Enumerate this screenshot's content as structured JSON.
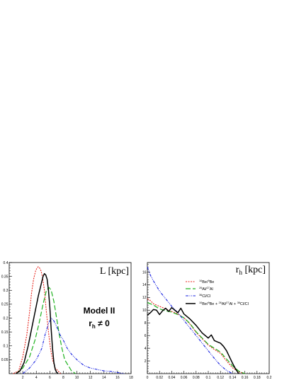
{
  "chart_data": [
    {
      "type": "line",
      "panel": "L",
      "title": "L [kpc]",
      "annotation": {
        "line1": "Model II",
        "line2_main": "r",
        "line2_sub": "h",
        "line2_rest": " ≠ 0"
      },
      "xlim": [
        0,
        18
      ],
      "ylim": [
        0,
        0.4
      ],
      "xticks": [
        2,
        4,
        6,
        8,
        10,
        12,
        14,
        16,
        18
      ],
      "yticks": [
        0.05,
        0.1,
        0.15,
        0.2,
        0.25,
        0.3,
        0.35,
        0.4
      ],
      "ytick_labels": [
        "0.05",
        "0.1",
        "0.15",
        "0.2",
        "0.25",
        "0.3",
        "0.35",
        "0.4"
      ],
      "series": [
        {
          "color": "#e8231b",
          "dash": "2,1.5",
          "width": 1.1,
          "x": [
            0.6,
            1.4,
            2.0,
            2.6,
            3.0,
            3.3,
            3.6,
            3.9,
            4.1,
            4.3,
            4.5,
            4.7,
            4.9,
            5.2,
            5.5,
            5.8,
            6.1,
            6.4,
            6.8,
            7.2,
            7.6
          ],
          "y": [
            0.0,
            0.01,
            0.06,
            0.14,
            0.22,
            0.29,
            0.34,
            0.37,
            0.38,
            0.385,
            0.38,
            0.37,
            0.35,
            0.3,
            0.22,
            0.15,
            0.09,
            0.05,
            0.02,
            0.01,
            0.0
          ]
        },
        {
          "color": "#1fb21f",
          "dash": "7,3",
          "width": 1.2,
          "x": [
            1.0,
            2.0,
            3.0,
            3.8,
            4.4,
            5.0,
            5.5,
            5.9,
            6.2,
            6.6,
            7.0,
            7.4,
            7.8,
            8.2,
            8.7,
            9.2,
            9.8
          ],
          "y": [
            0.0,
            0.02,
            0.06,
            0.12,
            0.18,
            0.25,
            0.3,
            0.31,
            0.3,
            0.26,
            0.2,
            0.14,
            0.09,
            0.05,
            0.03,
            0.01,
            0.0
          ]
        },
        {
          "color": "#1620e0",
          "dash": "4,1.5,1,1.5,1,1.5",
          "width": 1.1,
          "x": [
            2.0,
            3.0,
            4.0,
            4.8,
            5.3,
            5.8,
            6.2,
            6.6,
            7.0,
            7.5,
            8.0,
            8.6,
            9.2,
            10.0,
            11.0,
            12.0,
            13.0,
            14.0,
            15.0,
            16.0,
            17.0
          ],
          "y": [
            0.0,
            0.02,
            0.05,
            0.09,
            0.14,
            0.18,
            0.2,
            0.19,
            0.17,
            0.14,
            0.12,
            0.09,
            0.07,
            0.05,
            0.03,
            0.02,
            0.015,
            0.01,
            0.008,
            0.004,
            0.0
          ]
        },
        {
          "color": "#000000",
          "dash": "",
          "width": 1.5,
          "x": [
            1.0,
            1.6,
            2.2,
            2.8,
            3.3,
            3.8,
            4.3,
            4.7,
            5.0,
            5.2,
            5.4,
            5.6,
            5.8,
            6.0,
            6.2,
            6.4,
            6.6,
            6.8,
            7.0,
            7.2
          ],
          "y": [
            0.0,
            0.01,
            0.04,
            0.1,
            0.16,
            0.22,
            0.28,
            0.32,
            0.35,
            0.36,
            0.355,
            0.34,
            0.3,
            0.24,
            0.16,
            0.09,
            0.04,
            0.015,
            0.005,
            0.0
          ]
        }
      ]
    },
    {
      "type": "line",
      "panel": "rh",
      "title": {
        "main": "r",
        "sub": "h",
        "rest": " [kpc]"
      },
      "xlim": [
        0,
        0.2
      ],
      "ylim": [
        0,
        17.5
      ],
      "xticks": [
        0,
        0.02,
        0.04,
        0.06,
        0.08,
        0.1,
        0.12,
        0.14,
        0.16,
        0.18,
        0.2
      ],
      "xtick_labels": [
        "0",
        "0.02",
        "0.04",
        "0.06",
        "0.08",
        "0.1",
        "0.12",
        "0.14",
        "0.16",
        "0.18",
        "0.2"
      ],
      "yticks": [
        2,
        4,
        6,
        8,
        10,
        12,
        14,
        16
      ],
      "legend": [
        {
          "pre": "",
          "sup1": "10",
          "mid1": "Be/",
          "sup2": "9",
          "mid2": "Be",
          "sup3": "",
          "mid3": "",
          "sup4": "",
          "mid4": ""
        },
        {
          "pre": "",
          "sup1": "26",
          "mid1": "Al/",
          "sup2": "27",
          "mid2": "Al",
          "sup3": "",
          "mid3": "",
          "sup4": "",
          "mid4": ""
        },
        {
          "pre": "",
          "sup1": "36",
          "mid1": "Cl/Cl",
          "sup2": "",
          "mid2": "",
          "sup3": "",
          "mid3": "",
          "sup4": "",
          "mid4": ""
        },
        {
          "pre": "",
          "sup1": "10",
          "mid1": "Be/",
          "sup2": "9",
          "mid2": "Be + ",
          "sup3": "26",
          "mid3": "Al/",
          "sup4": "27",
          "mid4": "Al + ",
          "sup5": "36",
          "mid5": "Cl/Cl"
        }
      ],
      "series": [
        {
          "color": "#e8231b",
          "dash": "2,1.5",
          "width": 1.1,
          "x": [
            0.0,
            0.005,
            0.01,
            0.015,
            0.02,
            0.03,
            0.04,
            0.05,
            0.06,
            0.07,
            0.08,
            0.09,
            0.1,
            0.11,
            0.12,
            0.13,
            0.14,
            0.15,
            0.16
          ],
          "y": [
            11.8,
            11.5,
            11.0,
            10.8,
            10.6,
            10.2,
            9.8,
            9.4,
            8.8,
            7.8,
            6.5,
            5.5,
            4.5,
            3.8,
            3.2,
            2.0,
            0.9,
            0.3,
            0.0
          ]
        },
        {
          "color": "#1fb21f",
          "dash": "7,3",
          "width": 1.2,
          "x": [
            0.0,
            0.01,
            0.02,
            0.03,
            0.04,
            0.05,
            0.06,
            0.07,
            0.08,
            0.09,
            0.1,
            0.11,
            0.12,
            0.13,
            0.14,
            0.15,
            0.16
          ],
          "y": [
            11.2,
            10.8,
            10.2,
            9.9,
            9.7,
            9.3,
            8.8,
            7.9,
            6.6,
            5.6,
            4.6,
            4.0,
            3.4,
            2.3,
            1.2,
            0.4,
            0.0
          ]
        },
        {
          "color": "#1620e0",
          "dash": "4,1.5,1,1.5,1,1.5",
          "width": 1.1,
          "x": [
            0.0,
            0.005,
            0.01,
            0.015,
            0.02,
            0.025,
            0.03,
            0.04,
            0.05,
            0.06,
            0.07,
            0.08,
            0.09,
            0.1,
            0.11,
            0.12,
            0.13,
            0.14
          ],
          "y": [
            16.8,
            15.5,
            14.6,
            13.8,
            13.0,
            12.4,
            11.8,
            10.6,
            9.6,
            8.4,
            7.2,
            6.0,
            4.8,
            3.6,
            2.4,
            1.3,
            0.5,
            0.0
          ]
        },
        {
          "color": "#000000",
          "dash": "",
          "width": 1.5,
          "x": [
            0.0,
            0.005,
            0.01,
            0.015,
            0.02,
            0.025,
            0.03,
            0.035,
            0.04,
            0.045,
            0.05,
            0.055,
            0.06,
            0.07,
            0.08,
            0.09,
            0.1,
            0.105,
            0.11,
            0.115,
            0.12,
            0.125,
            0.13,
            0.135,
            0.14,
            0.145,
            0.15
          ],
          "y": [
            9.2,
            9.6,
            10.1,
            10.0,
            9.3,
            9.9,
            10.3,
            9.8,
            10.4,
            10.0,
            9.6,
            10.3,
            9.4,
            8.6,
            7.6,
            6.4,
            5.6,
            6.1,
            5.2,
            5.0,
            4.8,
            4.3,
            3.6,
            2.6,
            1.6,
            0.7,
            0.0
          ]
        }
      ]
    }
  ]
}
